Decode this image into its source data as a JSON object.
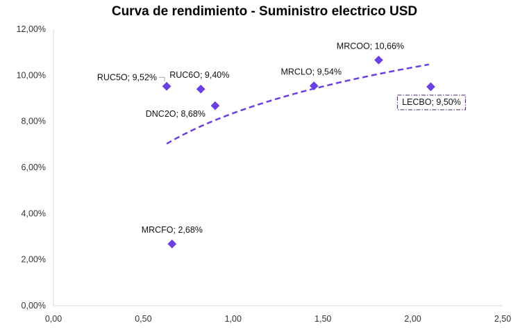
{
  "chart_data": {
    "type": "scatter",
    "title": "Curva de rendimiento - Suministro electrico USD",
    "xlim": [
      0,
      2.5
    ],
    "ylim": [
      0,
      12
    ],
    "x_ticks": [
      "0,00",
      "0,50",
      "1,00",
      "1,50",
      "2,00",
      "2,50"
    ],
    "y_ticks": [
      "0,00%",
      "2,00%",
      "4,00%",
      "6,00%",
      "8,00%",
      "10,00%",
      "12,00%"
    ],
    "grid": false,
    "legend": "none",
    "marker_color": "#6B3FE0",
    "trendline": {
      "type": "logarithmic",
      "style": "dashed",
      "color": "#6B3FE0",
      "x_range": [
        0.63,
        2.09
      ]
    },
    "points": [
      {
        "name": "RUC5O",
        "x": 0.63,
        "y": 9.52,
        "label": "RUC5O; 9,52%"
      },
      {
        "name": "RUC6O",
        "x": 0.82,
        "y": 9.4,
        "label": "RUC6O; 9,40%"
      },
      {
        "name": "DNC2O",
        "x": 0.9,
        "y": 8.68,
        "label": "DNC2O; 8,68%"
      },
      {
        "name": "MRCFO",
        "x": 0.66,
        "y": 2.68,
        "label": "MRCFO; 2,68%"
      },
      {
        "name": "MRCLO",
        "x": 1.45,
        "y": 9.54,
        "label": "MRCLO; 9,54%"
      },
      {
        "name": "MRCOO",
        "x": 1.81,
        "y": 10.66,
        "label": "MRCOO; 10,66%"
      },
      {
        "name": "LECBO",
        "x": 2.1,
        "y": 9.5,
        "label": "LECBO; 9,50%"
      }
    ]
  }
}
